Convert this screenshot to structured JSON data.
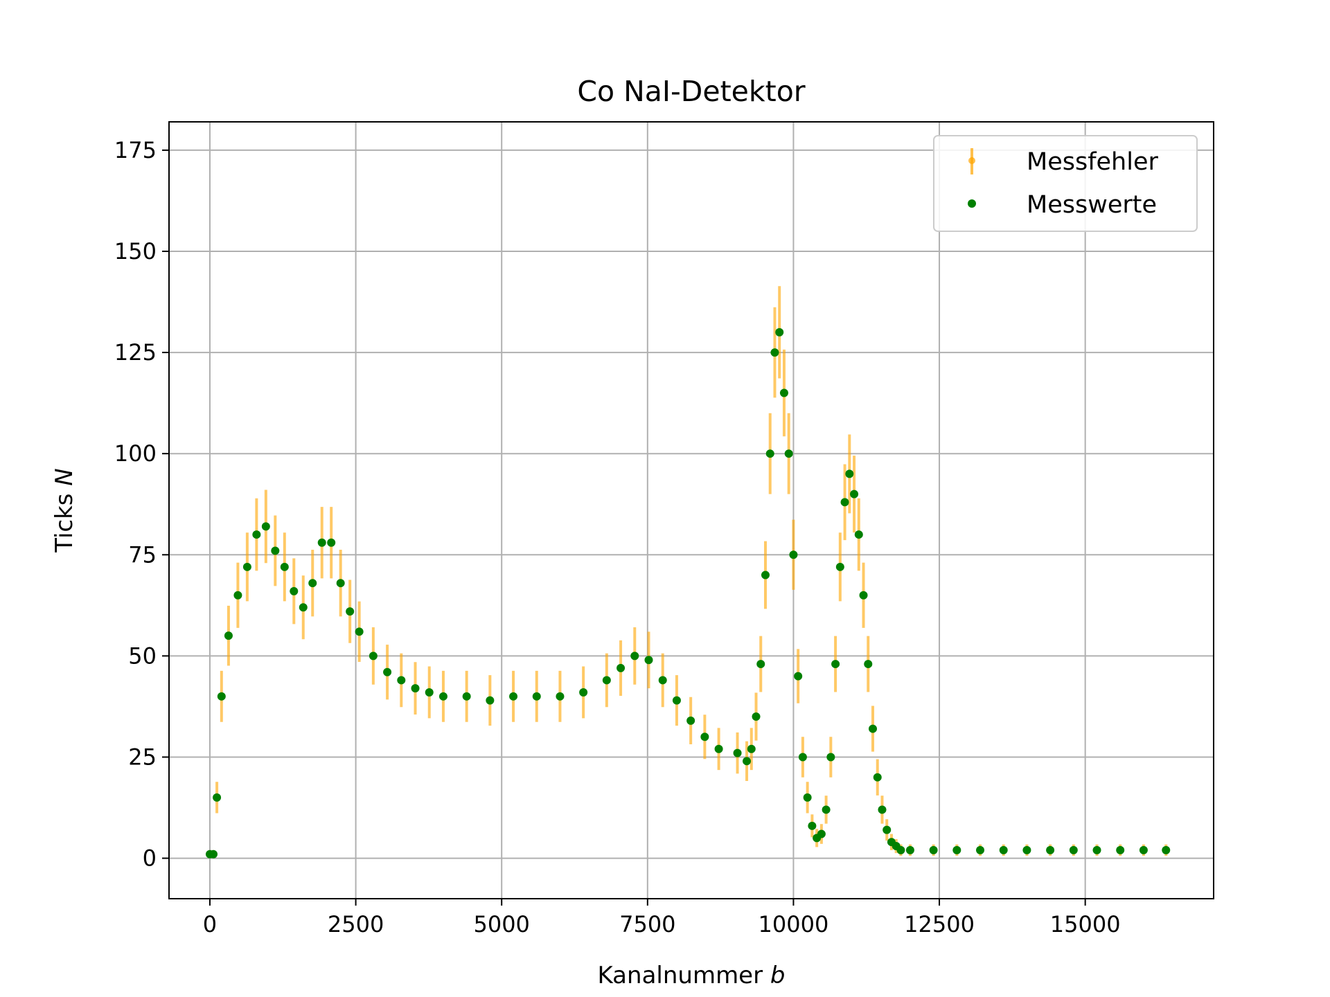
{
  "chart_data": {
    "type": "scatter",
    "title": "Co NaI-Detektor",
    "xlabel": "Kanalnummer",
    "xlabel_symbol": "b",
    "ylabel": "Ticks",
    "ylabel_symbol": "N",
    "xlim": [
      -700,
      17200
    ],
    "ylim": [
      -10,
      182
    ],
    "x_ticks": [
      0,
      2500,
      5000,
      7500,
      10000,
      12500,
      15000
    ],
    "y_ticks": [
      0,
      25,
      50,
      75,
      100,
      125,
      150,
      175
    ],
    "grid": true,
    "legend_position": "top-right",
    "series": [
      {
        "name": "Messfehler",
        "kind": "errorbar",
        "color": "#ffa500",
        "error": "sqrt(N)",
        "x": [
          0,
          60,
          120,
          200,
          320,
          480,
          640,
          800,
          960,
          1120,
          1280,
          1440,
          1600,
          1760,
          1920,
          2080,
          2240,
          2400,
          2560,
          2800,
          3040,
          3280,
          3520,
          3760,
          4000,
          4400,
          4800,
          5200,
          5600,
          6000,
          6400,
          6800,
          7040,
          7280,
          7520,
          7760,
          8000,
          8240,
          8480,
          8720,
          9040,
          9200,
          9280,
          9360,
          9440,
          9520,
          9600,
          9680,
          9760,
          9840,
          9920,
          10000,
          10080,
          10160,
          10240,
          10320,
          10400,
          10480,
          10560,
          10640,
          10720,
          10800,
          10880,
          10960,
          11040,
          11120,
          11200,
          11280,
          11360,
          11440,
          11520,
          11600,
          11680,
          11760,
          11840,
          12000,
          12400,
          12800,
          13200,
          13600,
          14000,
          14400,
          14800,
          15200,
          15600,
          16000,
          16384
        ],
        "y": [
          1,
          1,
          15,
          40,
          55,
          65,
          72,
          80,
          82,
          76,
          72,
          66,
          62,
          68,
          78,
          78,
          68,
          61,
          56,
          50,
          46,
          44,
          42,
          41,
          40,
          40,
          39,
          40,
          40,
          40,
          41,
          44,
          47,
          50,
          49,
          44,
          39,
          34,
          30,
          27,
          26,
          24,
          27,
          35,
          48,
          70,
          100,
          125,
          130,
          115,
          100,
          75,
          45,
          25,
          15,
          8,
          5,
          6,
          12,
          25,
          48,
          72,
          88,
          95,
          90,
          80,
          65,
          48,
          32,
          20,
          12,
          7,
          4,
          3,
          2,
          2,
          2,
          2,
          2,
          2,
          2,
          2,
          2,
          2,
          2,
          2,
          2
        ]
      },
      {
        "name": "Messwerte",
        "kind": "points",
        "color": "#008000",
        "x": [
          0,
          60,
          120,
          200,
          320,
          480,
          640,
          800,
          960,
          1120,
          1280,
          1440,
          1600,
          1760,
          1920,
          2080,
          2240,
          2400,
          2560,
          2800,
          3040,
          3280,
          3520,
          3760,
          4000,
          4400,
          4800,
          5200,
          5600,
          6000,
          6400,
          6800,
          7040,
          7280,
          7520,
          7760,
          8000,
          8240,
          8480,
          8720,
          9040,
          9200,
          9280,
          9360,
          9440,
          9520,
          9600,
          9680,
          9760,
          9840,
          9920,
          10000,
          10080,
          10160,
          10240,
          10320,
          10400,
          10480,
          10560,
          10640,
          10720,
          10800,
          10880,
          10960,
          11040,
          11120,
          11200,
          11280,
          11360,
          11440,
          11520,
          11600,
          11680,
          11760,
          11840,
          12000,
          12400,
          12800,
          13200,
          13600,
          14000,
          14400,
          14800,
          15200,
          15600,
          16000,
          16384
        ],
        "y": [
          1,
          1,
          15,
          40,
          55,
          65,
          72,
          80,
          82,
          76,
          72,
          66,
          62,
          68,
          78,
          78,
          68,
          61,
          56,
          50,
          46,
          44,
          42,
          41,
          40,
          40,
          39,
          40,
          40,
          40,
          41,
          44,
          47,
          50,
          49,
          44,
          39,
          34,
          30,
          27,
          26,
          24,
          27,
          35,
          48,
          70,
          100,
          125,
          130,
          115,
          100,
          75,
          45,
          25,
          15,
          8,
          5,
          6,
          12,
          25,
          48,
          72,
          88,
          95,
          90,
          80,
          65,
          48,
          32,
          20,
          12,
          7,
          4,
          3,
          2,
          2,
          2,
          2,
          2,
          2,
          2,
          2,
          2,
          2,
          2,
          2,
          2
        ]
      }
    ]
  }
}
